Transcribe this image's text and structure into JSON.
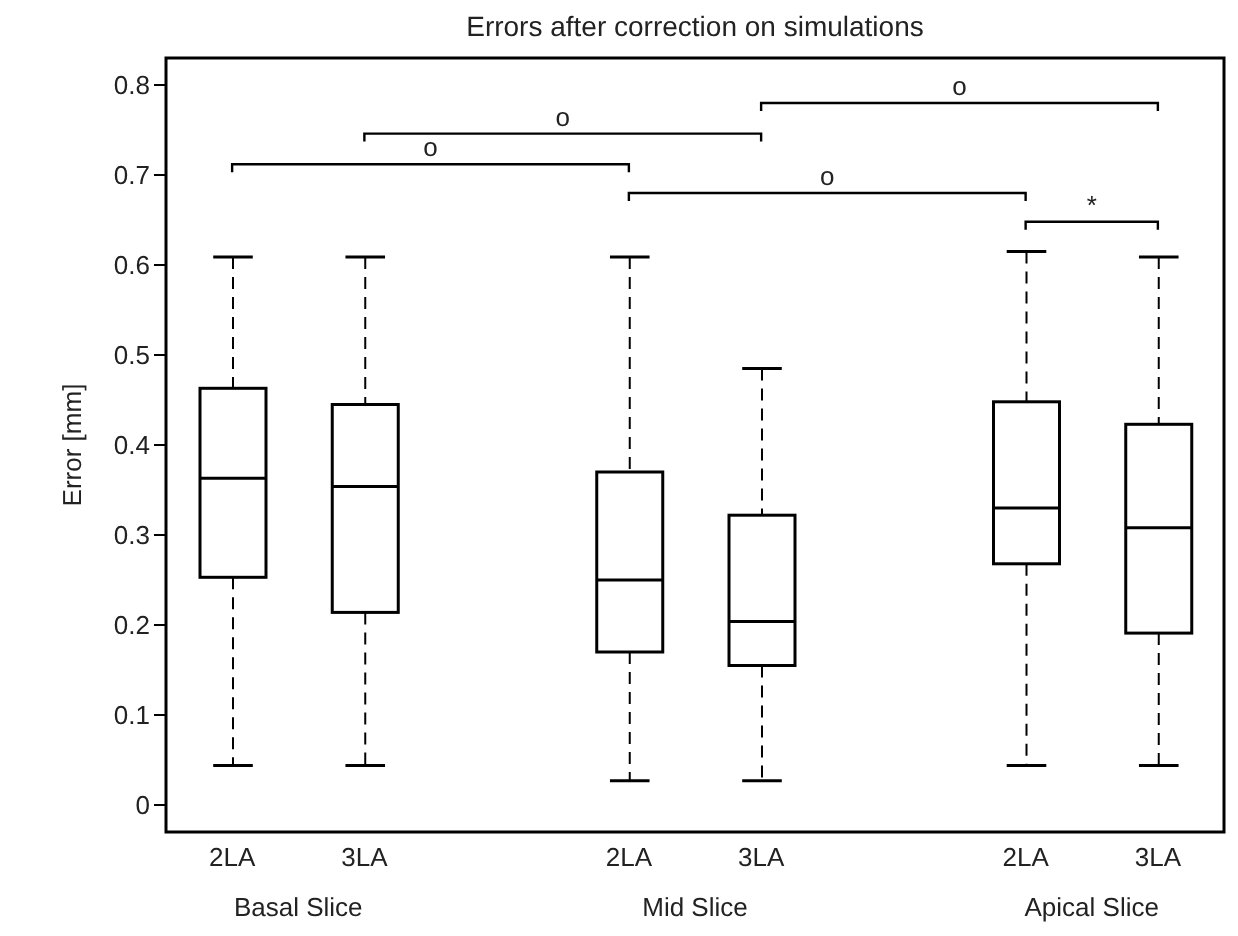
{
  "chart_data": {
    "type": "box",
    "title": "Errors after correction on simulations",
    "ylabel": "Error [mm]",
    "categories": [
      "2LA",
      "3LA",
      null,
      "2LA",
      "3LA",
      null,
      "2LA",
      "3LA"
    ],
    "boxes": [
      {
        "low": 0.044,
        "q1": 0.253,
        "median": 0.363,
        "q3": 0.463,
        "high": 0.609
      },
      {
        "low": 0.044,
        "q1": 0.214,
        "median": 0.354,
        "q3": 0.445,
        "high": 0.609
      },
      null,
      {
        "low": 0.027,
        "q1": 0.17,
        "median": 0.25,
        "q3": 0.37,
        "high": 0.609
      },
      {
        "low": 0.027,
        "q1": 0.155,
        "median": 0.204,
        "q3": 0.322,
        "high": 0.485
      },
      null,
      {
        "low": 0.044,
        "q1": 0.268,
        "median": 0.33,
        "q3": 0.448,
        "high": 0.615
      },
      {
        "low": 0.044,
        "q1": 0.191,
        "median": 0.308,
        "q3": 0.423,
        "high": 0.609
      }
    ],
    "ylim": [
      -0.03,
      0.83
    ],
    "yticks": [
      0,
      0.1,
      0.2,
      0.3,
      0.4,
      0.5,
      0.6,
      0.7,
      0.8
    ],
    "annotations": [
      "Basal Slice",
      "Mid Slice",
      "Apical Slice",
      "o",
      "o",
      "o",
      "o",
      "*"
    ]
  }
}
